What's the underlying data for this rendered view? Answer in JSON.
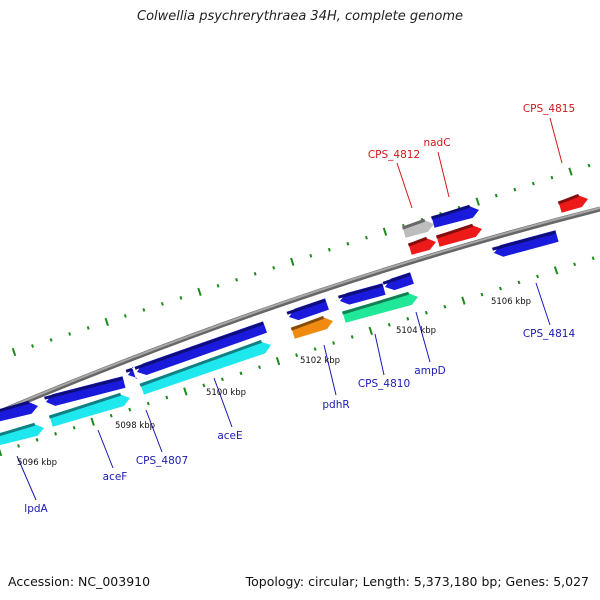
{
  "title": "Colwellia psychrerythraea 34H, complete genome",
  "accession": "Accession: NC_003910",
  "summary": "Topology: circular; Length: 5,373,180 bp; Genes: 5,027",
  "colors": {
    "backbone": "#8c8c8c",
    "tick": "#1c8a1c",
    "gene_blue": "#1a1adc",
    "gene_cyan": "#1ee8ee",
    "gene_red": "#ee1a1a",
    "gene_orange": "#f08a10",
    "gene_green": "#20e898",
    "gene_gray": "#bdbdbd",
    "label_blue": "#1a1ab0",
    "label_red": "#d01818"
  },
  "kbp_labels": [
    "5096 kbp",
    "5098 kbp",
    "5100 kbp",
    "5102 kbp",
    "5104 kbp",
    "5106 kbp"
  ],
  "gene_labels": [
    {
      "text": "lpdA",
      "color": "blue"
    },
    {
      "text": "aceF",
      "color": "blue"
    },
    {
      "text": "CPS_4807",
      "color": "blue"
    },
    {
      "text": "aceE",
      "color": "blue"
    },
    {
      "text": "pdhR",
      "color": "blue"
    },
    {
      "text": "CPS_4810",
      "color": "blue"
    },
    {
      "text": "ampD",
      "color": "blue"
    },
    {
      "text": "CPS_4814",
      "color": "blue"
    },
    {
      "text": "CPS_4812",
      "color": "red"
    },
    {
      "text": "nadC",
      "color": "red"
    },
    {
      "text": "CPS_4815",
      "color": "red"
    }
  ]
}
